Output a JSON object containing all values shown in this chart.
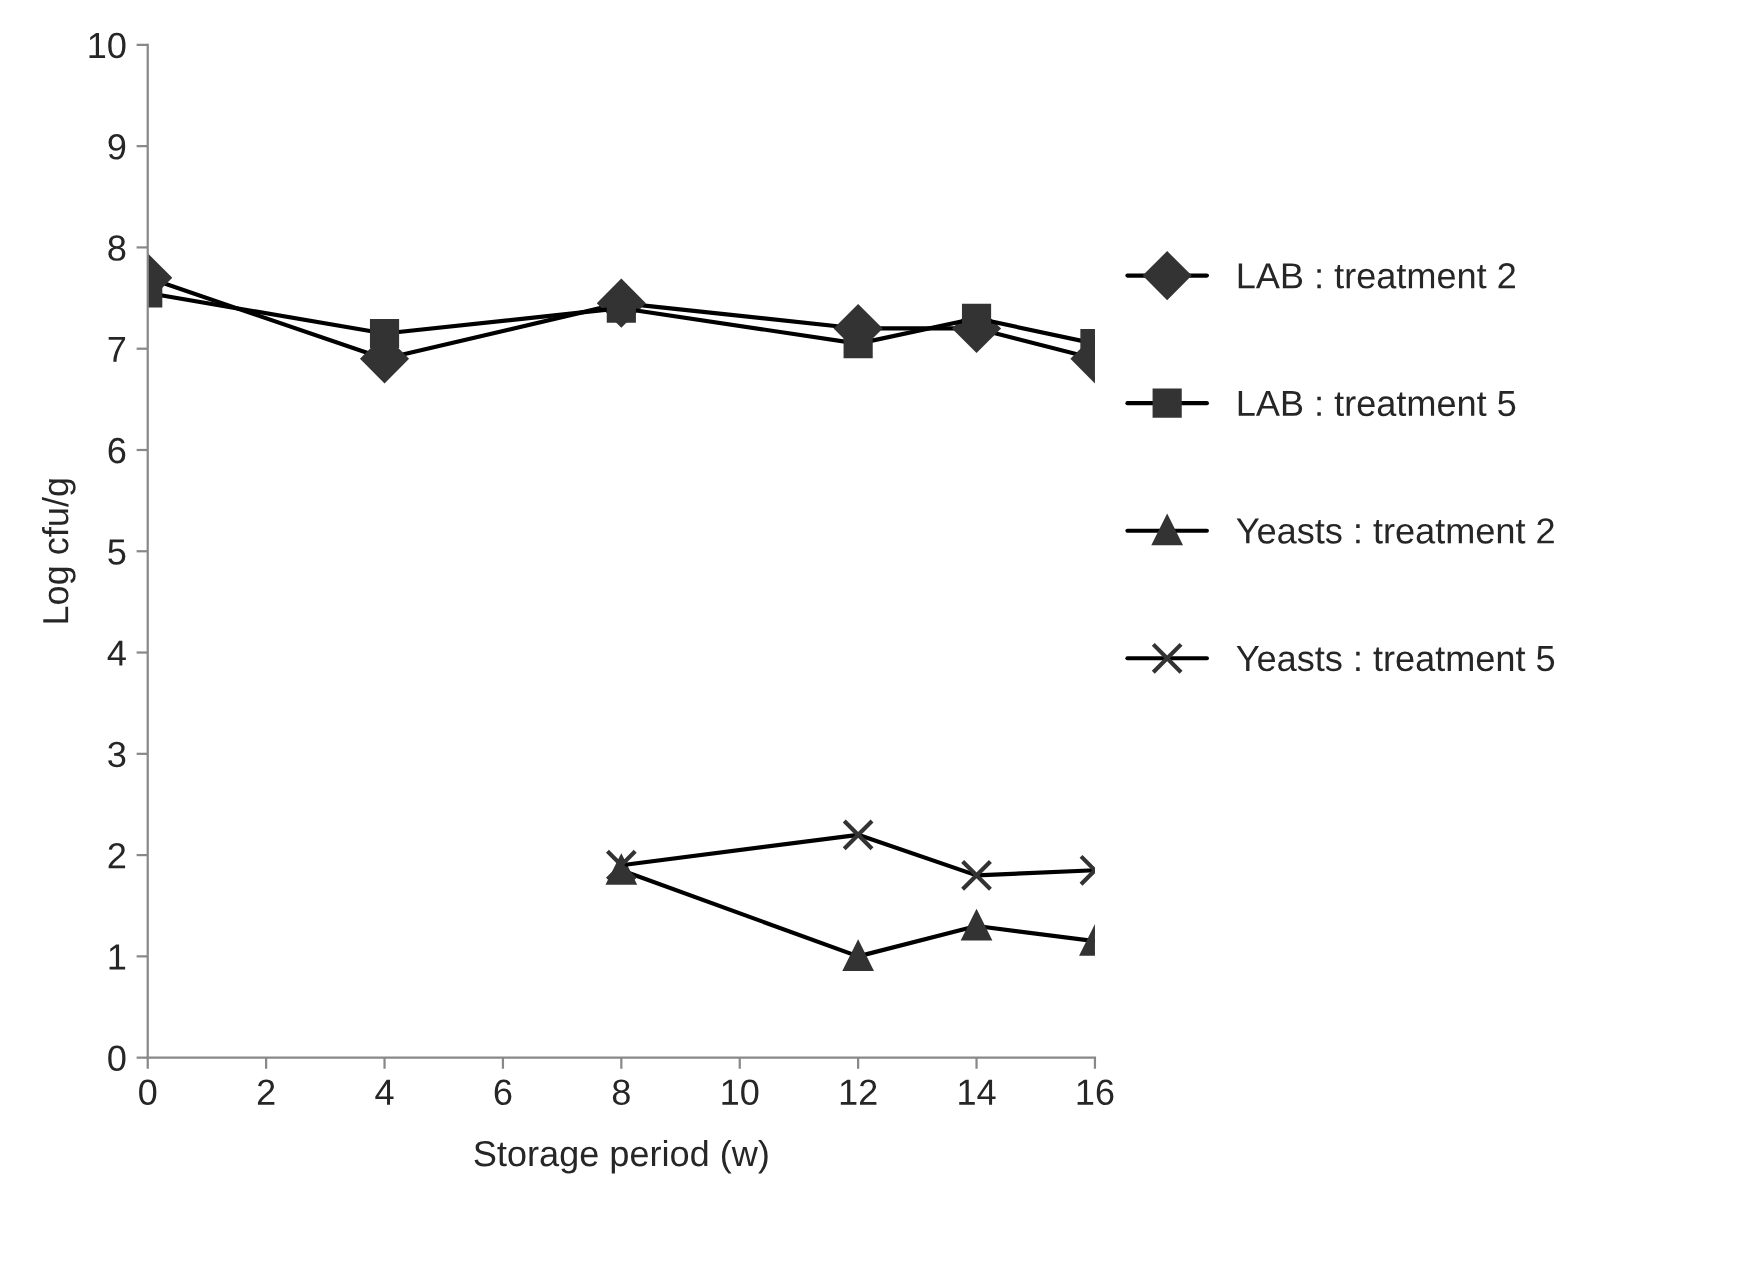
{
  "chart_data": {
    "type": "line",
    "xlabel": "Storage period (w)",
    "ylabel": "Log cfu/g",
    "xlim": [
      0,
      16
    ],
    "xticks": [
      0,
      2,
      4,
      6,
      8,
      10,
      12,
      14,
      16
    ],
    "ylim": [
      0,
      10
    ],
    "yticks": [
      0,
      1,
      2,
      3,
      4,
      5,
      6,
      7,
      8,
      9,
      10
    ],
    "grid": false,
    "legend": "right",
    "series": [
      {
        "name": "LAB : treatment 2",
        "color": "#333333",
        "marker": "diamond",
        "x": [
          0,
          4,
          8,
          12,
          14,
          16
        ],
        "values": [
          7.7,
          6.9,
          7.45,
          7.2,
          7.2,
          6.9
        ]
      },
      {
        "name": "LAB : treatment 5",
        "color": "#333333",
        "marker": "square",
        "x": [
          0,
          4,
          8,
          12,
          14,
          16
        ],
        "values": [
          7.55,
          7.15,
          7.4,
          7.05,
          7.3,
          7.05
        ]
      },
      {
        "name": "Yeasts : treatment 2",
        "color": "#333333",
        "marker": "triangle",
        "x": [
          8,
          12,
          14,
          16
        ],
        "values": [
          1.85,
          1.0,
          1.3,
          1.15
        ]
      },
      {
        "name": "Yeasts : treatment 5",
        "color": "#333333",
        "marker": "cross",
        "x": [
          8,
          12,
          14,
          16
        ],
        "values": [
          1.9,
          2.2,
          1.8,
          1.85
        ]
      }
    ]
  }
}
